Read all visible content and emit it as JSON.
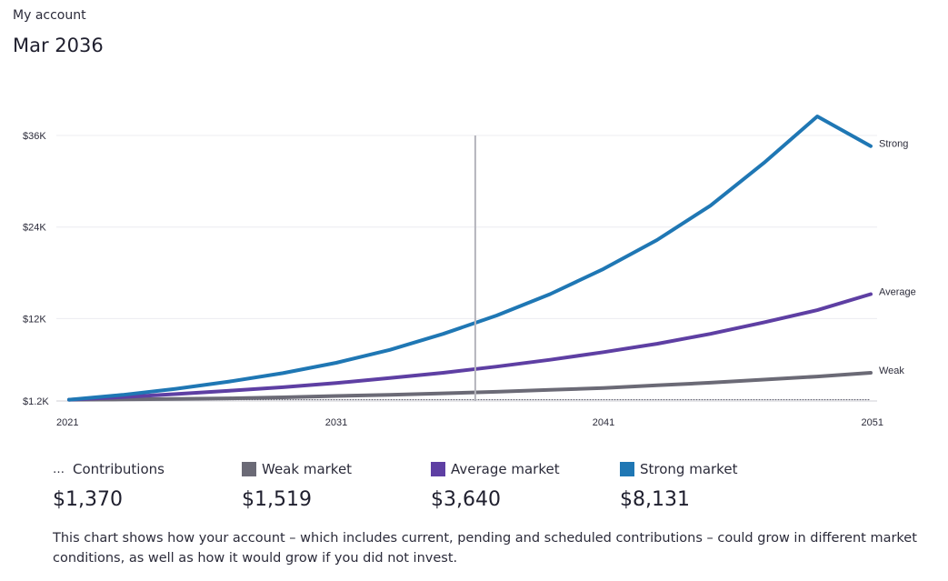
{
  "header": {
    "account_label": "My account",
    "period": "Mar 2036"
  },
  "chart_data": {
    "type": "line",
    "x_ticks": [
      2021,
      2031,
      2041,
      2051
    ],
    "xlim": [
      2021,
      2051
    ],
    "y_ticks": [
      "$1.2K",
      "$12K",
      "$24K",
      "$36K"
    ],
    "y_tick_values": [
      1200,
      12000,
      24000,
      36000
    ],
    "ylim": [
      1200,
      36000
    ],
    "grid": "horizontal",
    "marker_x": 2036.2,
    "x": [
      2021,
      2023,
      2025,
      2027,
      2029,
      2031,
      2033,
      2035,
      2037,
      2039,
      2041,
      2043,
      2045,
      2047,
      2049,
      2051
    ],
    "series": [
      {
        "name": "Contributions",
        "color": "#555566",
        "style": "dotted",
        "values": [
          1370,
          1370,
          1370,
          1370,
          1370,
          1370,
          1370,
          1370,
          1370,
          1370,
          1370,
          1370,
          1370,
          1370,
          1370,
          1370
        ]
      },
      {
        "name": "Weak",
        "color": "#6b6a76",
        "values": [
          1370,
          1400,
          1460,
          1550,
          1680,
          1850,
          2000,
          2200,
          2400,
          2650,
          2900,
          3250,
          3600,
          4000,
          4400,
          4900
        ]
      },
      {
        "name": "Average",
        "color": "#5e3fa3",
        "values": [
          1370,
          1700,
          2100,
          2550,
          3000,
          3550,
          4200,
          4900,
          5700,
          6600,
          7600,
          8700,
          10000,
          11500,
          13100,
          15200
        ]
      },
      {
        "name": "Strong",
        "color": "#1f77b4",
        "values": [
          1370,
          2000,
          2800,
          3750,
          4850,
          6200,
          7900,
          10000,
          12400,
          15200,
          18500,
          22300,
          26800,
          32400,
          38500,
          34600
        ]
      }
    ]
  },
  "legend": [
    {
      "label": "Contributions",
      "value": "$1,370",
      "swatch": "dots",
      "color": "#555566"
    },
    {
      "label": "Weak market",
      "value": "$1,519",
      "swatch": "box",
      "color": "#6b6a76"
    },
    {
      "label": "Average market",
      "value": "$3,640",
      "swatch": "box",
      "color": "#5e3fa3"
    },
    {
      "label": "Strong market",
      "value": "$8,131",
      "swatch": "box",
      "color": "#1f77b4"
    }
  ],
  "note": "This chart shows how your account – which includes current, pending and scheduled contributions – could grow in different market conditions, as well as how it would grow if you did not invest."
}
